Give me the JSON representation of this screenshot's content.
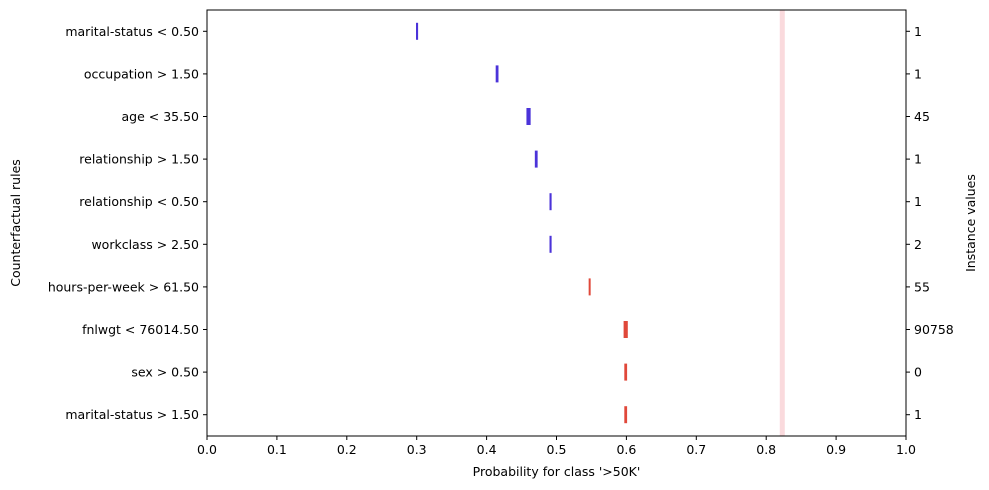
{
  "chart_data": {
    "type": "interval",
    "xlabel": "Probability for class '>50K'",
    "ylabel": "Counterfactual rules",
    "ylabel_right": "Instance values",
    "xlim": [
      0.0,
      1.0
    ],
    "xticks": [
      "0.0",
      "0.1",
      "0.2",
      "0.3",
      "0.4",
      "0.5",
      "0.6",
      "0.7",
      "0.8",
      "0.9",
      "1.0"
    ],
    "reference_line": {
      "x": 0.823,
      "color": "#fadadd"
    },
    "colors": {
      "lower": "#4b33d9",
      "higher": "#e0483a"
    },
    "rules": [
      {
        "label": "marital-status < 0.50",
        "instance_value": "1",
        "low": 0.299,
        "high": 0.302,
        "direction": "lower"
      },
      {
        "label": "occupation > 1.50",
        "instance_value": "1",
        "low": 0.413,
        "high": 0.417,
        "direction": "lower"
      },
      {
        "label": "age < 35.50",
        "instance_value": "45",
        "low": 0.457,
        "high": 0.463,
        "direction": "lower"
      },
      {
        "label": "relationship > 1.50",
        "instance_value": "1",
        "low": 0.469,
        "high": 0.473,
        "direction": "lower"
      },
      {
        "label": "relationship < 0.50",
        "instance_value": "1",
        "low": 0.49,
        "high": 0.493,
        "direction": "lower"
      },
      {
        "label": "workclass > 2.50",
        "instance_value": "2",
        "low": 0.49,
        "high": 0.493,
        "direction": "lower"
      },
      {
        "label": "hours-per-week > 61.50",
        "instance_value": "55",
        "low": 0.546,
        "high": 0.548,
        "direction": "higher"
      },
      {
        "label": "fnlwgt < 76014.50",
        "instance_value": "90758",
        "low": 0.596,
        "high": 0.602,
        "direction": "higher"
      },
      {
        "label": "sex > 0.50",
        "instance_value": "0",
        "low": 0.597,
        "high": 0.601,
        "direction": "higher"
      },
      {
        "label": "marital-status > 1.50",
        "instance_value": "1",
        "low": 0.597,
        "high": 0.601,
        "direction": "higher"
      }
    ]
  }
}
